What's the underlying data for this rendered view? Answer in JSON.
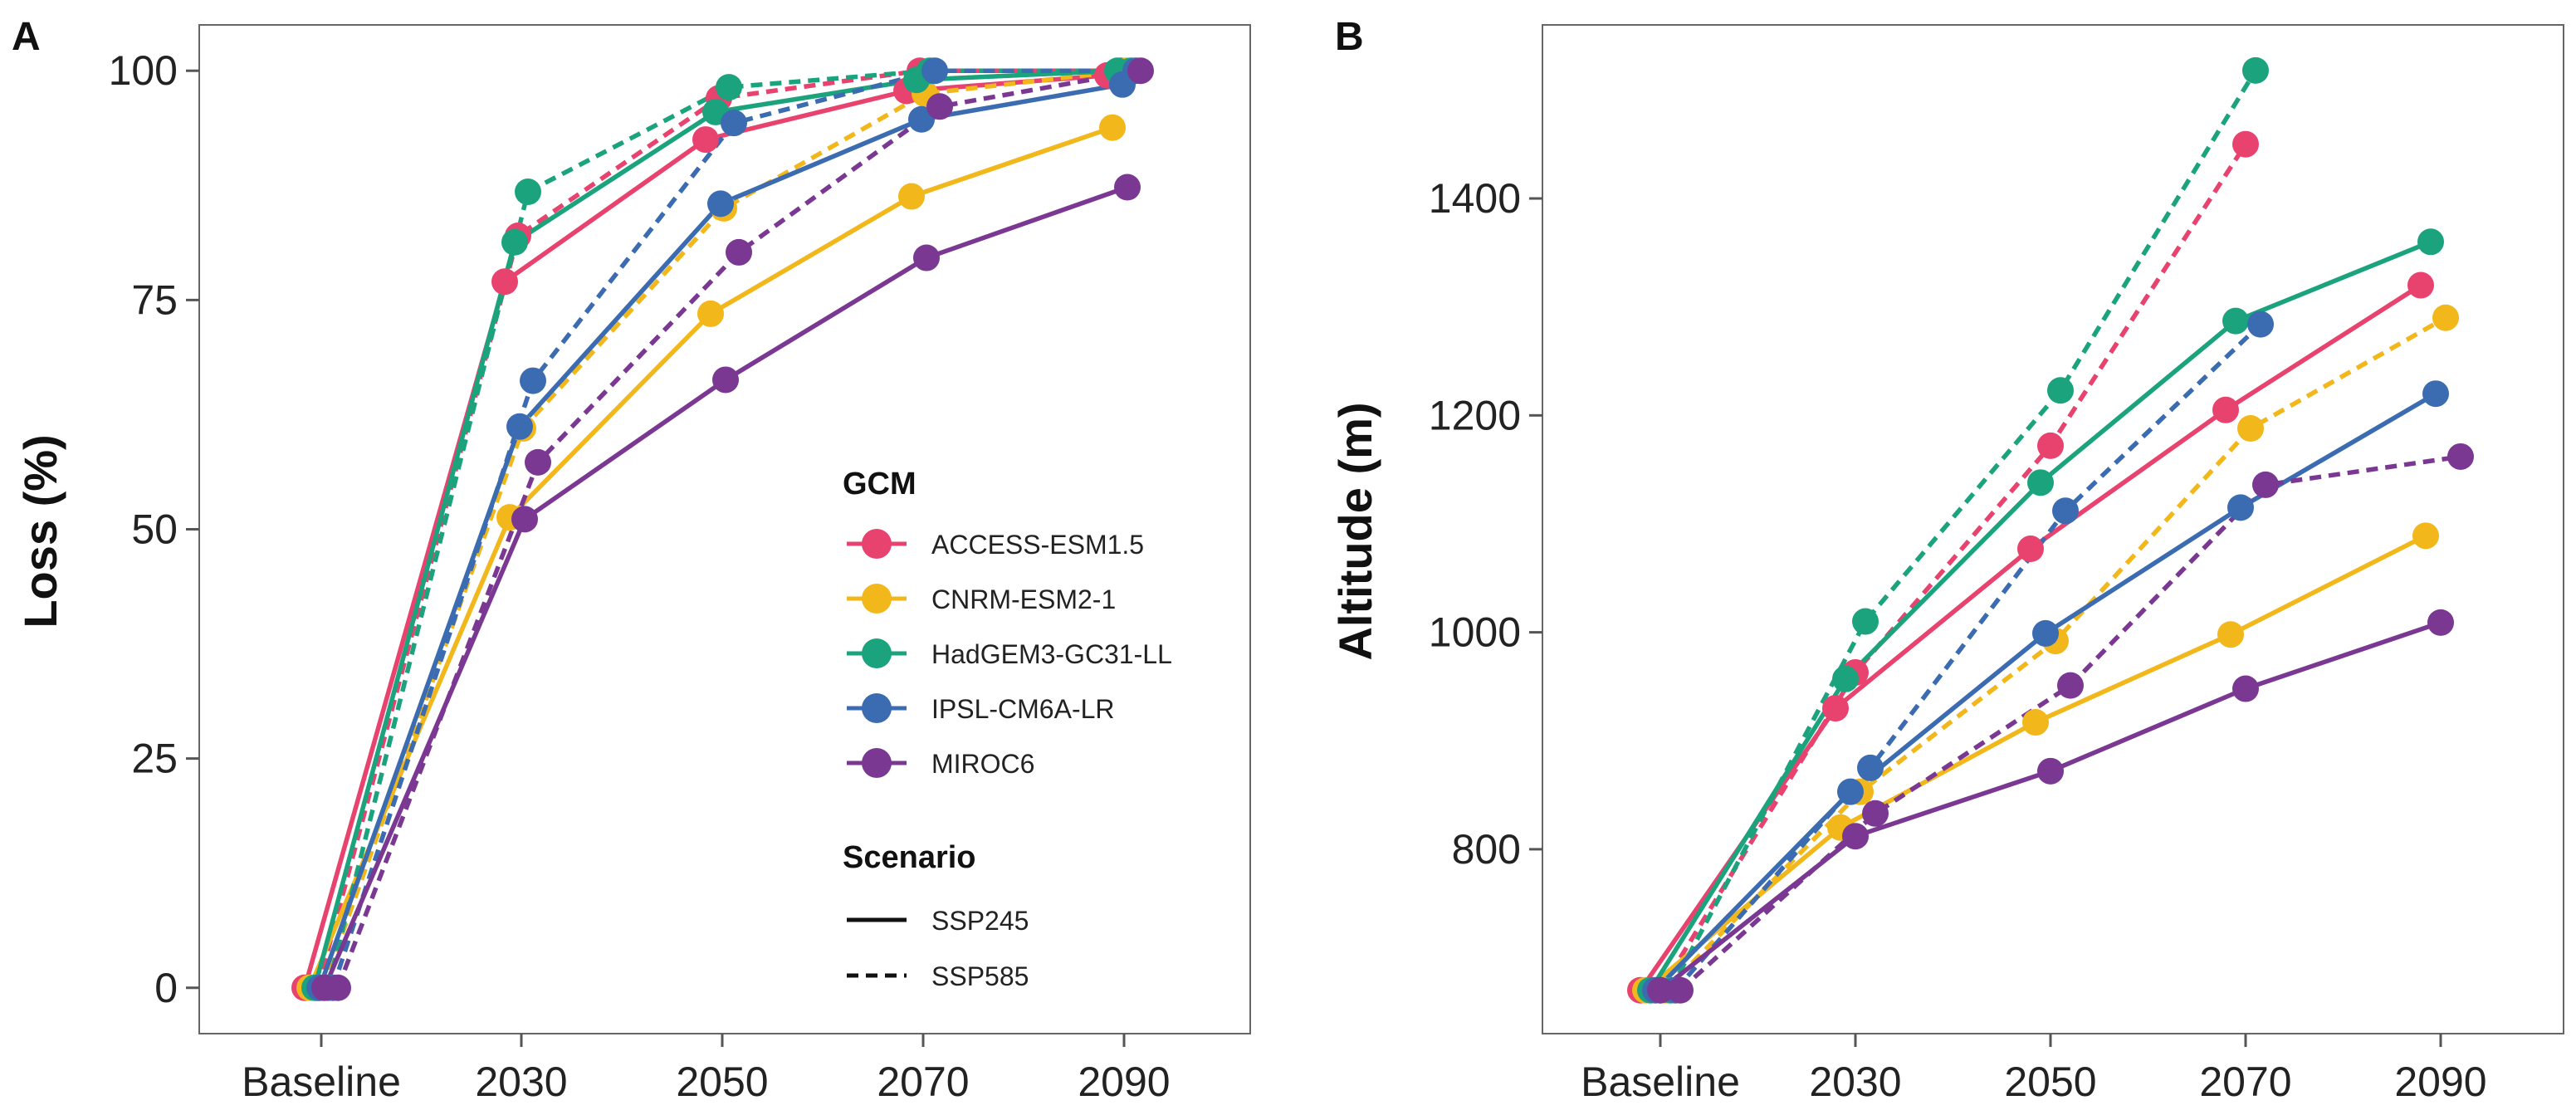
{
  "chart_data": [
    {
      "panel": "A",
      "type": "line",
      "ylabel": "Loss (%)",
      "xlabel": "",
      "categories": [
        "Baseline",
        "2030",
        "2050",
        "2070",
        "2090"
      ],
      "ylim": [
        -5,
        105
      ],
      "yticks": [
        0,
        25,
        50,
        75,
        100
      ],
      "series": [
        {
          "name": "ACCESS-ESM1.5 SSP245",
          "gcm": "ACCESS-ESM1.5",
          "scenario": "SSP245",
          "values": [
            0,
            77,
            92.5,
            97.8,
            99.5
          ]
        },
        {
          "name": "ACCESS-ESM1.5 SSP585",
          "gcm": "ACCESS-ESM1.5",
          "scenario": "SSP585",
          "values": [
            0,
            82,
            97,
            100,
            100
          ]
        },
        {
          "name": "CNRM-ESM2-1 SSP245",
          "gcm": "CNRM-ESM2-1",
          "scenario": "SSP245",
          "values": [
            0,
            51.3,
            73.5,
            86.3,
            93.8
          ]
        },
        {
          "name": "CNRM-ESM2-1 SSP585",
          "gcm": "CNRM-ESM2-1",
          "scenario": "SSP585",
          "values": [
            0,
            61,
            85,
            97.5,
            100
          ]
        },
        {
          "name": "HadGEM3-GC31-LL SSP245",
          "gcm": "HadGEM3-GC31-LL",
          "scenario": "SSP245",
          "values": [
            0,
            81.3,
            95.5,
            99,
            100
          ]
        },
        {
          "name": "HadGEM3-GC31-LL SSP585",
          "gcm": "HadGEM3-GC31-LL",
          "scenario": "SSP585",
          "values": [
            0,
            86.8,
            98.2,
            100,
            100
          ]
        },
        {
          "name": "IPSL-CM6A-LR SSP245",
          "gcm": "IPSL-CM6A-LR",
          "scenario": "SSP245",
          "values": [
            0,
            61.2,
            85.5,
            94.7,
            98.5
          ]
        },
        {
          "name": "IPSL-CM6A-LR SSP585",
          "gcm": "IPSL-CM6A-LR",
          "scenario": "SSP585",
          "values": [
            0,
            66.2,
            94.3,
            100,
            100
          ]
        },
        {
          "name": "MIROC6 SSP245",
          "gcm": "MIROC6",
          "scenario": "SSP245",
          "values": [
            0,
            51.1,
            66.3,
            79.6,
            87.3
          ]
        },
        {
          "name": "MIROC6 SSP585",
          "gcm": "MIROC6",
          "scenario": "SSP585",
          "values": [
            0,
            57.3,
            80.2,
            96.1,
            100
          ]
        }
      ]
    },
    {
      "panel": "B",
      "type": "line",
      "ylabel": "Altitude (m)",
      "xlabel": "",
      "categories": [
        "Baseline",
        "2030",
        "2050",
        "2070",
        "2090"
      ],
      "ylim": [
        630,
        1560
      ],
      "yticks": [
        800,
        1000,
        1200,
        1400
      ],
      "series": [
        {
          "name": "ACCESS-ESM1.5 SSP245",
          "gcm": "ACCESS-ESM1.5",
          "scenario": "SSP245",
          "values": [
            670,
            930,
            1077,
            1205,
            1320
          ]
        },
        {
          "name": "ACCESS-ESM1.5 SSP585",
          "gcm": "ACCESS-ESM1.5",
          "scenario": "SSP585",
          "values": [
            670,
            963,
            1172,
            1450,
            null
          ]
        },
        {
          "name": "CNRM-ESM2-1 SSP245",
          "gcm": "CNRM-ESM2-1",
          "scenario": "SSP245",
          "values": [
            670,
            820,
            917,
            998,
            1089
          ]
        },
        {
          "name": "CNRM-ESM2-1 SSP585",
          "gcm": "CNRM-ESM2-1",
          "scenario": "SSP585",
          "values": [
            670,
            853,
            992,
            1188,
            1290
          ]
        },
        {
          "name": "HadGEM3-GC31-LL SSP245",
          "gcm": "HadGEM3-GC31-LL",
          "scenario": "SSP245",
          "values": [
            670,
            957,
            1138,
            1287,
            1360
          ]
        },
        {
          "name": "HadGEM3-GC31-LL SSP585",
          "gcm": "HadGEM3-GC31-LL",
          "scenario": "SSP585",
          "values": [
            670,
            1010,
            1223,
            1518,
            null
          ]
        },
        {
          "name": "IPSL-CM6A-LR SSP245",
          "gcm": "IPSL-CM6A-LR",
          "scenario": "SSP245",
          "values": [
            670,
            853,
            999,
            1115,
            1220
          ]
        },
        {
          "name": "IPSL-CM6A-LR SSP585",
          "gcm": "IPSL-CM6A-LR",
          "scenario": "SSP585",
          "values": [
            670,
            875,
            1112,
            1284,
            null
          ]
        },
        {
          "name": "MIROC6 SSP245",
          "gcm": "MIROC6",
          "scenario": "SSP245",
          "values": [
            670,
            812,
            872,
            948,
            1009
          ]
        },
        {
          "name": "MIROC6 SSP585",
          "gcm": "MIROC6",
          "scenario": "SSP585",
          "values": [
            670,
            833,
            951,
            1136,
            1162
          ]
        }
      ]
    }
  ],
  "legend": {
    "gcm_title": "GCM",
    "gcm_items": [
      {
        "label": "ACCESS-ESM1.5",
        "color": "#E8426E"
      },
      {
        "label": "CNRM-ESM2-1",
        "color": "#F2B71A"
      },
      {
        "label": "HadGEM3-GC31-LL",
        "color": "#1BA37D"
      },
      {
        "label": "IPSL-CM6A-LR",
        "color": "#3B6BB0"
      },
      {
        "label": "MIROC6",
        "color": "#7B3893"
      }
    ],
    "scenario_title": "Scenario",
    "scenario_items": [
      {
        "label": "SSP245",
        "style": "solid"
      },
      {
        "label": "SSP585",
        "style": "dashed"
      }
    ],
    "placement": "inside panel A, lower-right"
  }
}
